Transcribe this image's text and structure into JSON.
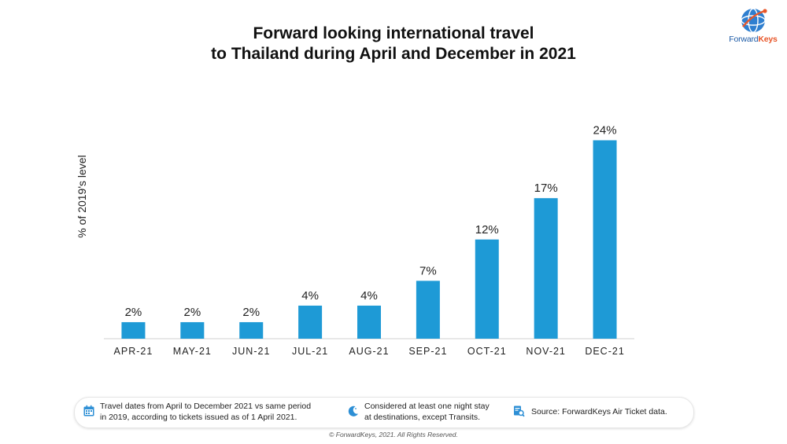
{
  "title_line1": "Forward looking international travel",
  "title_line2": "to Thailand during April and December in 2021",
  "logo": {
    "brand_forward": "Forward",
    "brand_keys": "Keys"
  },
  "chart_data": {
    "type": "bar",
    "title": "Forward looking international travel to Thailand during April and December in 2021",
    "ylabel": "% of 2019's level",
    "xlabel": "",
    "categories": [
      "APR-21",
      "MAY-21",
      "JUN-21",
      "JUL-21",
      "AUG-21",
      "SEP-21",
      "OCT-21",
      "NOV-21",
      "DEC-21"
    ],
    "values": [
      2,
      2,
      2,
      4,
      4,
      7,
      12,
      17,
      24
    ],
    "data_labels": [
      "2%",
      "2%",
      "2%",
      "4%",
      "4%",
      "7%",
      "12%",
      "17%",
      "24%"
    ],
    "ylim": [
      0,
      25
    ],
    "grid": false,
    "bar_color": "#1e9ad6"
  },
  "footer": {
    "note1_line1": "Travel dates from April to December 2021 vs same period",
    "note1_line2": "in 2019, according to tickets issued as of 1 April 2021.",
    "note2_line1": "Considered at least one night stay",
    "note2_line2": "at destinations, except Transits.",
    "note3": "Source: ForwardKeys Air Ticket data."
  },
  "copyright": "© ForwardKeys, 2021. All Rights Reserved.",
  "colors": {
    "accent": "#1e9ad6",
    "brand_blue": "#1c5aa6",
    "brand_orange": "#e8572a"
  }
}
